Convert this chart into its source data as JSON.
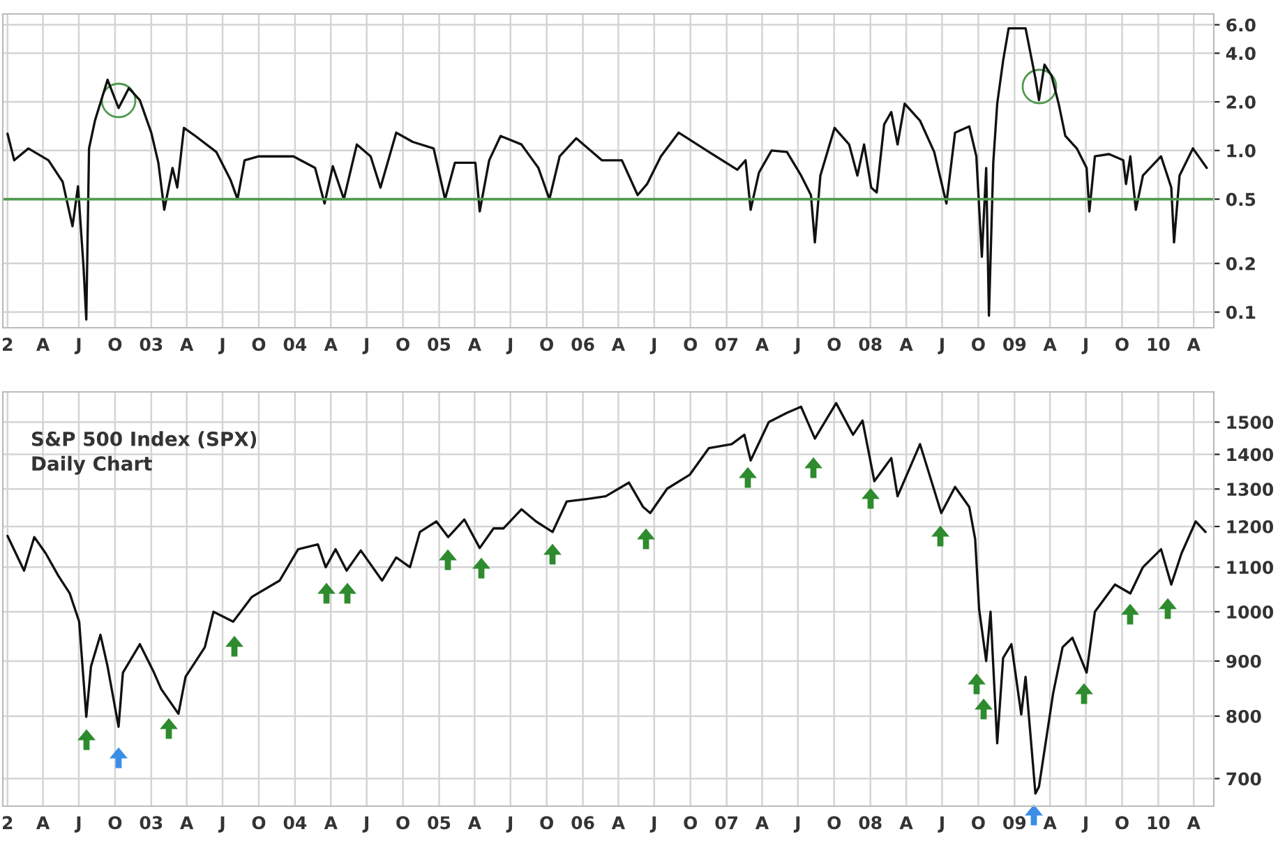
{
  "chart_data": [
    {
      "type": "line",
      "log": true,
      "grid": true,
      "xlim": [
        "2001-12-20",
        "2010-05-22"
      ],
      "ylim": [
        0.08,
        7
      ],
      "yticks": [
        0.1,
        0.2,
        0.5,
        {
          "value": 1,
          "label": "1.0"
        },
        {
          "value": 2,
          "label": "2.0"
        },
        {
          "value": 4,
          "label": "4.0"
        },
        {
          "value": 6,
          "label": "6.0"
        }
      ],
      "xticks": [
        {
          "value": "2002-01",
          "label": "2"
        },
        {
          "value": "2002-04",
          "label": "A"
        },
        {
          "value": "2002-07",
          "label": "J"
        },
        {
          "value": "2002-10",
          "label": "O"
        },
        {
          "value": "2003-01",
          "label": "03"
        },
        {
          "value": "2003-04",
          "label": "A"
        },
        {
          "value": "2003-07",
          "label": "J"
        },
        {
          "value": "2003-10",
          "label": "O"
        },
        {
          "value": "2004-01",
          "label": "04"
        },
        {
          "value": "2004-04",
          "label": "A"
        },
        {
          "value": "2004-07",
          "label": "J"
        },
        {
          "value": "2004-10",
          "label": "O"
        },
        {
          "value": "2005-01",
          "label": "05"
        },
        {
          "value": "2005-04",
          "label": "A"
        },
        {
          "value": "2005-07",
          "label": "J"
        },
        {
          "value": "2005-10",
          "label": "O"
        },
        {
          "value": "2006-01",
          "label": "06"
        },
        {
          "value": "2006-04",
          "label": "A"
        },
        {
          "value": "2006-07",
          "label": "J"
        },
        {
          "value": "2006-10",
          "label": "O"
        },
        {
          "value": "2007-01",
          "label": "07"
        },
        {
          "value": "2007-04",
          "label": "A"
        },
        {
          "value": "2007-07",
          "label": "J"
        },
        {
          "value": "2007-10",
          "label": "O"
        },
        {
          "value": "2008-01",
          "label": "08"
        },
        {
          "value": "2008-04",
          "label": "A"
        },
        {
          "value": "2008-07",
          "label": "J"
        },
        {
          "value": "2008-10",
          "label": "O"
        },
        {
          "value": "2009-01",
          "label": "09"
        },
        {
          "value": "2009-04",
          "label": "A"
        },
        {
          "value": "2009-07",
          "label": "J"
        },
        {
          "value": "2009-10",
          "label": "O"
        },
        {
          "value": "2010-01",
          "label": "10"
        },
        {
          "value": "2010-04",
          "label": "A"
        }
      ],
      "ref_lines": [
        {
          "axis": "y",
          "value": 0.5,
          "color": "#4f9a4f"
        }
      ],
      "x": [
        "2002-01-01",
        "2002-01-18",
        "2002-02-23",
        "2002-04-15",
        "2002-05-21",
        "2002-06-15",
        "2002-06-29",
        "2002-07-13",
        "2002-07-20",
        "2002-07-27",
        "2002-08-11",
        "2002-09-12",
        "2002-10-10",
        "2002-11-05",
        "2002-12-03",
        "2003-01-01",
        "2003-01-19",
        "2003-02-03",
        "2003-02-24",
        "2003-03-08",
        "2003-03-25",
        "2003-04-23",
        "2003-06-15",
        "2003-07-21",
        "2003-08-08",
        "2003-08-26",
        "2003-10-01",
        "2003-11-06",
        "2003-12-28",
        "2004-02-21",
        "2004-03-16",
        "2004-04-06",
        "2004-05-04",
        "2004-06-06",
        "2004-07-11",
        "2004-08-05",
        "2004-09-14",
        "2004-10-26",
        "2004-12-18",
        "2005-01-16",
        "2005-02-10",
        "2005-04-03",
        "2005-04-14",
        "2005-05-08",
        "2005-06-06",
        "2005-07-29",
        "2005-09-10",
        "2005-10-08",
        "2005-11-03",
        "2005-12-15",
        "2006-02-18",
        "2006-04-10",
        "2006-05-20",
        "2006-06-13",
        "2006-07-18",
        "2006-09-01",
        "2006-11-17",
        "2007-01-28",
        "2007-02-18",
        "2007-03-03",
        "2007-03-24",
        "2007-04-25",
        "2007-06-03",
        "2007-07-09",
        "2007-08-03",
        "2007-08-13",
        "2007-08-27",
        "2007-10-02",
        "2007-11-08",
        "2007-11-29",
        "2007-12-16",
        "2008-01-03",
        "2008-01-17",
        "2008-02-05",
        "2008-02-23",
        "2008-03-10",
        "2008-03-28",
        "2008-05-06",
        "2008-06-11",
        "2008-07-12",
        "2008-08-03",
        "2008-09-08",
        "2008-09-26",
        "2008-10-10",
        "2008-10-21",
        "2008-10-28",
        "2008-11-08",
        "2008-11-18",
        "2008-12-03",
        "2008-12-17",
        "2009-01-29",
        "2009-02-23",
        "2009-03-04",
        "2009-03-18",
        "2009-04-05",
        "2009-04-23",
        "2009-05-10",
        "2009-06-08",
        "2009-07-03",
        "2009-07-10",
        "2009-07-24",
        "2009-08-29",
        "2009-10-04",
        "2009-10-11",
        "2009-10-22",
        "2009-11-05",
        "2009-11-23",
        "2010-01-08",
        "2010-02-03",
        "2010-02-10",
        "2010-02-24",
        "2010-03-30",
        "2010-05-04"
      ],
      "series": [
        {
          "color": "#111111",
          "values": [
            1.27,
            0.87,
            1.03,
            0.87,
            0.64,
            0.34,
            0.6,
            0.19,
            0.09,
            1.03,
            1.53,
            2.74,
            1.83,
            2.43,
            2.05,
            1.29,
            0.84,
            0.43,
            0.78,
            0.59,
            1.38,
            1.23,
            0.98,
            0.66,
            0.5,
            0.87,
            0.92,
            0.92,
            0.92,
            0.78,
            0.47,
            0.8,
            0.5,
            1.09,
            0.92,
            0.59,
            1.29,
            1.13,
            1.03,
            0.5,
            0.84,
            0.84,
            0.42,
            0.87,
            1.23,
            1.09,
            0.78,
            0.5,
            0.92,
            1.19,
            0.87,
            0.87,
            0.53,
            0.62,
            0.92,
            1.29,
            0.98,
            0.76,
            0.87,
            0.43,
            0.73,
            1.0,
            0.98,
            0.7,
            0.53,
            0.27,
            0.7,
            1.38,
            1.09,
            0.7,
            1.09,
            0.59,
            0.55,
            1.45,
            1.73,
            1.09,
            1.95,
            1.53,
            0.98,
            0.47,
            1.29,
            1.41,
            0.92,
            0.22,
            0.78,
            0.095,
            0.84,
            1.95,
            3.6,
            5.7,
            5.7,
            2.8,
            2.05,
            3.4,
            2.9,
            1.95,
            1.23,
            1.03,
            0.78,
            0.42,
            0.92,
            0.95,
            0.87,
            0.62,
            0.92,
            0.43,
            0.7,
            0.92,
            0.59,
            0.27,
            0.7,
            1.03,
            0.78
          ]
        }
      ]
    },
    {
      "type": "line",
      "log": true,
      "grid": true,
      "title": "S&P 500 Index (SPX)",
      "subtitle": "Daily Chart",
      "xlim": [
        "2001-12-20",
        "2010-05-22"
      ],
      "ylim": [
        660,
        1600
      ],
      "yticks": [
        700,
        800,
        900,
        1000,
        1100,
        1200,
        1300,
        1400,
        1500
      ],
      "xticks": [
        {
          "value": "2002-01",
          "label": "2"
        },
        {
          "value": "2002-04",
          "label": "A"
        },
        {
          "value": "2002-07",
          "label": "J"
        },
        {
          "value": "2002-10",
          "label": "O"
        },
        {
          "value": "2003-01",
          "label": "03"
        },
        {
          "value": "2003-04",
          "label": "A"
        },
        {
          "value": "2003-07",
          "label": "J"
        },
        {
          "value": "2003-10",
          "label": "O"
        },
        {
          "value": "2004-01",
          "label": "04"
        },
        {
          "value": "2004-04",
          "label": "A"
        },
        {
          "value": "2004-07",
          "label": "J"
        },
        {
          "value": "2004-10",
          "label": "O"
        },
        {
          "value": "2005-01",
          "label": "05"
        },
        {
          "value": "2005-04",
          "label": "A"
        },
        {
          "value": "2005-07",
          "label": "J"
        },
        {
          "value": "2005-10",
          "label": "O"
        },
        {
          "value": "2006-01",
          "label": "06"
        },
        {
          "value": "2006-04",
          "label": "A"
        },
        {
          "value": "2006-07",
          "label": "J"
        },
        {
          "value": "2006-10",
          "label": "O"
        },
        {
          "value": "2007-01",
          "label": "07"
        },
        {
          "value": "2007-04",
          "label": "A"
        },
        {
          "value": "2007-07",
          "label": "J"
        },
        {
          "value": "2007-10",
          "label": "O"
        },
        {
          "value": "2008-01",
          "label": "08"
        },
        {
          "value": "2008-04",
          "label": "A"
        },
        {
          "value": "2008-07",
          "label": "J"
        },
        {
          "value": "2008-10",
          "label": "O"
        },
        {
          "value": "2009-01",
          "label": "09"
        },
        {
          "value": "2009-04",
          "label": "A"
        },
        {
          "value": "2009-07",
          "label": "J"
        },
        {
          "value": "2009-10",
          "label": "O"
        },
        {
          "value": "2010-01",
          "label": "10"
        },
        {
          "value": "2010-04",
          "label": "A"
        }
      ],
      "x": [
        "2002-01-01",
        "2002-02-12",
        "2002-03-10",
        "2002-04-08",
        "2002-05-10",
        "2002-06-08",
        "2002-07-02",
        "2002-07-20",
        "2002-08-01",
        "2002-08-25",
        "2002-09-12",
        "2002-10-10",
        "2002-10-21",
        "2002-12-03",
        "2003-01-08",
        "2003-01-26",
        "2003-03-11",
        "2003-03-29",
        "2003-05-17",
        "2003-06-08",
        "2003-07-28",
        "2003-09-13",
        "2003-11-23",
        "2004-01-09",
        "2004-02-28",
        "2004-03-19",
        "2004-04-13",
        "2004-05-11",
        "2004-06-16",
        "2004-08-09",
        "2004-09-14",
        "2004-10-19",
        "2004-11-13",
        "2004-12-25",
        "2005-01-24",
        "2005-03-06",
        "2005-04-14",
        "2005-05-19",
        "2005-06-13",
        "2005-07-29",
        "2005-09-04",
        "2005-10-16",
        "2005-11-21",
        "2006-01-14",
        "2006-02-28",
        "2006-04-28",
        "2006-06-03",
        "2006-06-21",
        "2006-08-03",
        "2006-09-29",
        "2006-11-17",
        "2007-01-14",
        "2007-02-15",
        "2007-03-03",
        "2007-04-18",
        "2007-06-03",
        "2007-07-09",
        "2007-08-13",
        "2007-10-06",
        "2007-11-18",
        "2007-12-12",
        "2008-01-11",
        "2008-02-23",
        "2008-03-10",
        "2008-05-06",
        "2008-06-29",
        "2008-08-03",
        "2008-09-08",
        "2008-09-23",
        "2008-10-03",
        "2008-10-21",
        "2008-11-01",
        "2008-11-18",
        "2008-12-03",
        "2008-12-24",
        "2009-01-18",
        "2009-01-29",
        "2009-02-23",
        "2009-03-04",
        "2009-04-09",
        "2009-05-03",
        "2009-05-28",
        "2009-07-03",
        "2009-07-24",
        "2009-09-13",
        "2009-10-22",
        "2009-11-23",
        "2010-01-08",
        "2010-02-03",
        "2010-03-01",
        "2010-04-06",
        "2010-05-01"
      ],
      "series": [
        {
          "color": "#111111",
          "values": [
            1176,
            1092,
            1173,
            1133,
            1080,
            1040,
            979,
            799,
            890,
            952,
            890,
            782,
            878,
            933,
            878,
            848,
            804,
            870,
            927,
            1000,
            979,
            1032,
            1069,
            1143,
            1155,
            1100,
            1143,
            1092,
            1140,
            1069,
            1123,
            1100,
            1186,
            1213,
            1173,
            1218,
            1146,
            1195,
            1195,
            1245,
            1213,
            1186,
            1266,
            1273,
            1280,
            1318,
            1251,
            1235,
            1301,
            1340,
            1419,
            1431,
            1460,
            1382,
            1500,
            1530,
            1550,
            1448,
            1562,
            1460,
            1505,
            1322,
            1389,
            1280,
            1431,
            1235,
            1306,
            1251,
            1168,
            1006,
            900,
            1000,
            755,
            906,
            933,
            803,
            870,
            678,
            688,
            840,
            927,
            946,
            878,
            1000,
            1060,
            1040,
            1100,
            1143,
            1060,
            1133,
            1213,
            1186
          ]
        }
      ]
    }
  ]
}
